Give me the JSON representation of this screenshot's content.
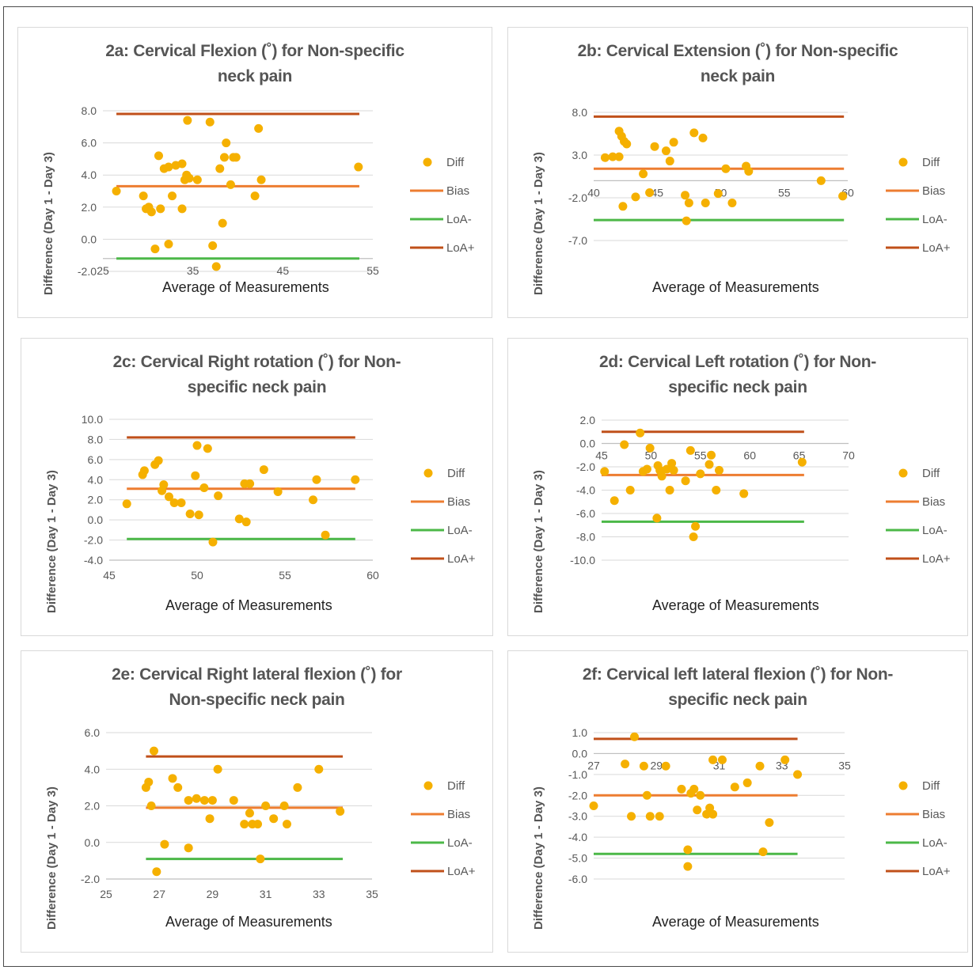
{
  "legend_labels": [
    "Diff",
    "Bias",
    "LoA-",
    "LoA+"
  ],
  "colors": {
    "diff": "#F5B000",
    "bias": "#ED7D31",
    "loa_minus": "#4CB848",
    "loa_plus": "#C0501A",
    "grid": "#D9D9D9"
  },
  "chart_data": [
    {
      "id": "2a",
      "type": "scatter",
      "title_lines": [
        "2a: Cervical Flexion (˚) for Non-specific",
        "neck pain"
      ],
      "xlabel": "Average of Measurements",
      "ylabel": "Difference (Day 1 - Day 3)",
      "xlim": [
        25,
        55
      ],
      "ylim": [
        -2,
        8
      ],
      "x_ticks": [
        25,
        35,
        45,
        55
      ],
      "x_tick_labels": [
        "25",
        "35",
        "45",
        "55"
      ],
      "y_ticks": [
        -2,
        0,
        2,
        4,
        6,
        8
      ],
      "y_tick_labels": [
        "-2.0",
        "0.0",
        "2.0",
        "4.0",
        "6.0",
        "8.0"
      ],
      "x_axis_at": -1.2,
      "bias": 3.3,
      "loa_minus": -1.2,
      "loa_plus": 7.8,
      "line_x": [
        26.5,
        53.5
      ],
      "x": [
        26.5,
        29.5,
        29.8,
        30.4,
        30.8,
        31.2,
        31.4,
        31.8,
        32.3,
        32.3,
        32.7,
        33.1,
        33.8,
        33.8,
        34.1,
        34.3,
        34.4,
        34.6,
        35.5,
        36.9,
        37.2,
        37.6,
        38.0,
        38.3,
        38.5,
        38.7,
        39.2,
        39.5,
        39.8,
        41.9,
        42.3,
        42.6,
        53.4,
        30.1
      ],
      "y": [
        3.0,
        2.7,
        1.9,
        1.7,
        -0.6,
        5.2,
        1.9,
        4.4,
        -0.3,
        4.5,
        2.7,
        4.6,
        1.9,
        4.7,
        3.7,
        4.0,
        7.4,
        3.8,
        3.7,
        7.3,
        -0.4,
        -1.7,
        4.4,
        1.0,
        5.1,
        6.0,
        3.4,
        5.1,
        5.1,
        2.7,
        6.9,
        3.7,
        4.5,
        2.0
      ]
    },
    {
      "id": "2b",
      "type": "scatter",
      "title_lines": [
        "2b: Cervical Extension (˚) for Non-specific",
        "neck pain"
      ],
      "xlabel": "Average of Measurements",
      "ylabel": "Difference (Day 1 - Day 3)",
      "xlim": [
        40,
        60
      ],
      "ylim": [
        -7,
        8
      ],
      "x_ticks": [
        40,
        45,
        50,
        55,
        60
      ],
      "x_tick_labels": [
        "40",
        "45",
        "50",
        "55",
        "60"
      ],
      "y_ticks": [
        -7,
        -2,
        3,
        8
      ],
      "y_tick_labels": [
        "-7.0",
        "-2.0",
        "3.0",
        "8.0"
      ],
      "x_axis_at": 0,
      "bias": 1.4,
      "loa_minus": -4.6,
      "loa_plus": 7.5,
      "line_x": [
        40,
        59.7
      ],
      "x": [
        40.9,
        41.5,
        42.0,
        42.0,
        42.2,
        42.4,
        42.6,
        42.3,
        43.3,
        43.9,
        44.4,
        44.8,
        45.7,
        46.0,
        46.3,
        47.2,
        47.3,
        47.5,
        47.9,
        48.6,
        48.8,
        49.8,
        50.4,
        50.9,
        52.0,
        52.2,
        57.9,
        59.6
      ],
      "y": [
        2.7,
        2.8,
        5.8,
        2.8,
        5.2,
        4.6,
        4.3,
        -3.0,
        -1.9,
        0.8,
        -1.4,
        4.0,
        3.5,
        2.3,
        4.5,
        -1.7,
        -4.7,
        -2.6,
        5.6,
        5.0,
        -2.6,
        -1.5,
        1.4,
        -2.6,
        1.7,
        1.1,
        0.0,
        -1.8
      ]
    },
    {
      "id": "2c",
      "type": "scatter",
      "title_lines": [
        "2c: Cervical Right rotation (˚) for Non-",
        "specific neck pain"
      ],
      "xlabel": "Average of Measurements",
      "ylabel": "Difference (Day 1 - Day 3)",
      "xlim": [
        45,
        60
      ],
      "ylim": [
        -4,
        10
      ],
      "x_ticks": [
        45,
        50,
        55,
        60
      ],
      "x_tick_labels": [
        "45",
        "50",
        "55",
        "60"
      ],
      "y_ticks": [
        -4,
        -2,
        0,
        2,
        4,
        6,
        8,
        10
      ],
      "y_tick_labels": [
        "-4.0",
        "-2.0",
        "0.0",
        "2.0",
        "4.0",
        "6.0",
        "8.0",
        "10.0"
      ],
      "x_axis_at": -4,
      "bias": 3.1,
      "loa_minus": -1.9,
      "loa_plus": 8.2,
      "line_x": [
        46,
        59
      ],
      "x": [
        46.0,
        46.9,
        47.0,
        47.6,
        47.8,
        48.0,
        48.1,
        48.4,
        48.7,
        49.1,
        49.6,
        49.9,
        50.0,
        50.1,
        50.4,
        50.6,
        50.9,
        51.2,
        52.4,
        52.7,
        52.8,
        53.0,
        53.8,
        54.6,
        56.6,
        56.8,
        57.3,
        59.0
      ],
      "y": [
        1.6,
        4.5,
        4.9,
        5.5,
        5.9,
        2.9,
        3.5,
        2.3,
        1.7,
        1.7,
        0.6,
        4.4,
        7.4,
        0.5,
        3.2,
        7.1,
        -2.2,
        2.4,
        0.1,
        3.6,
        -0.2,
        3.6,
        5.0,
        2.8,
        2.0,
        4.0,
        -1.5,
        4.0
      ]
    },
    {
      "id": "2d",
      "type": "scatter",
      "title_lines": [
        "2d: Cervical Left rotation (˚) for Non-",
        "specific neck pain"
      ],
      "xlabel": "Average of Measurements",
      "ylabel": "Difference (Day 1 - Day 3)",
      "xlim": [
        45,
        70
      ],
      "ylim": [
        -10,
        2
      ],
      "x_ticks": [
        45,
        50,
        55,
        60,
        65,
        70
      ],
      "x_tick_labels": [
        "45",
        "50",
        "55",
        "60",
        "65",
        "70"
      ],
      "y_ticks": [
        -10,
        -8,
        -6,
        -4,
        -2,
        0,
        2
      ],
      "y_tick_labels": [
        "-10.0",
        "-8.0",
        "-6.0",
        "-4.0",
        "-2.0",
        "0.0",
        "2.0"
      ],
      "x_axis_at": 0,
      "bias": -2.7,
      "loa_minus": -6.7,
      "loa_plus": 1.0,
      "line_x": [
        45,
        65.5
      ],
      "x": [
        45.3,
        46.3,
        47.3,
        47.9,
        48.9,
        49.2,
        49.6,
        49.9,
        50.6,
        50.7,
        50.9,
        51.1,
        51.6,
        51.9,
        52.1,
        52.3,
        53.5,
        54.0,
        54.3,
        54.5,
        55.0,
        55.9,
        56.1,
        56.6,
        56.9,
        59.4,
        65.3
      ],
      "y": [
        -2.4,
        -4.9,
        -0.1,
        -4.0,
        0.9,
        -2.4,
        -2.2,
        -0.4,
        -6.4,
        -1.9,
        -2.3,
        -2.8,
        -2.2,
        -4.0,
        -1.7,
        -2.3,
        -3.2,
        -0.6,
        -8.0,
        -7.1,
        -2.6,
        -1.8,
        -1.0,
        -4.0,
        -2.3,
        -4.3,
        -1.6
      ]
    },
    {
      "id": "2e",
      "type": "scatter",
      "title_lines": [
        "2e: Cervical Right lateral flexion (˚) for",
        "Non-specific neck pain"
      ],
      "xlabel": "Average of Measurements",
      "ylabel": "Difference (Day 1 - Day 3)",
      "xlim": [
        25,
        35
      ],
      "ylim": [
        -2,
        6
      ],
      "x_ticks": [
        25,
        27,
        29,
        31,
        33,
        35
      ],
      "x_tick_labels": [
        "25",
        "27",
        "29",
        "31",
        "33",
        "35"
      ],
      "y_ticks": [
        -2,
        0,
        2,
        4,
        6
      ],
      "y_tick_labels": [
        "-2.0",
        "0.0",
        "2.0",
        "4.0",
        "6.0"
      ],
      "x_axis_at": -2,
      "bias": 1.9,
      "loa_minus": -0.9,
      "loa_plus": 4.7,
      "line_x": [
        26.5,
        33.9
      ],
      "x": [
        26.5,
        26.6,
        26.7,
        26.8,
        26.9,
        27.2,
        27.5,
        27.7,
        28.1,
        28.1,
        28.4,
        28.7,
        28.9,
        29.0,
        29.2,
        29.8,
        30.2,
        30.4,
        30.5,
        30.7,
        30.8,
        31.0,
        31.3,
        31.7,
        31.8,
        32.2,
        33.0,
        33.8
      ],
      "y": [
        3.0,
        3.3,
        2.0,
        5.0,
        -1.6,
        -0.1,
        3.5,
        3.0,
        -0.3,
        2.3,
        2.4,
        2.3,
        1.3,
        2.3,
        4.0,
        2.3,
        1.0,
        1.6,
        1.0,
        1.0,
        -0.9,
        2.0,
        1.3,
        2.0,
        1.0,
        3.0,
        4.0,
        1.7
      ]
    },
    {
      "id": "2f",
      "type": "scatter",
      "title_lines": [
        "2f: Cervical left lateral flexion (˚) for Non-",
        "specific neck pain"
      ],
      "xlabel": "Average of Measurements",
      "ylabel": "Difference (Day 1 - Day 3)",
      "xlim": [
        27,
        35
      ],
      "ylim": [
        -6,
        1
      ],
      "x_ticks": [
        27,
        29,
        31,
        33,
        35
      ],
      "x_tick_labels": [
        "27",
        "29",
        "31",
        "33",
        "35"
      ],
      "y_ticks": [
        -6,
        -5,
        -4,
        -3,
        -2,
        -1,
        0,
        1
      ],
      "y_tick_labels": [
        "-6.0",
        "-5.0",
        "-4.0",
        "-3.0",
        "-2.0",
        "-1.0",
        "0.0",
        "1.0"
      ],
      "x_axis_at": 0,
      "bias": -2.0,
      "loa_minus": -4.8,
      "loa_plus": 0.7,
      "line_x": [
        27,
        33.5
      ],
      "x": [
        27.0,
        28.0,
        28.2,
        28.3,
        28.6,
        28.7,
        28.8,
        29.1,
        29.3,
        29.8,
        30.0,
        30.0,
        30.1,
        30.2,
        30.3,
        30.4,
        30.6,
        30.7,
        30.8,
        30.8,
        31.1,
        31.5,
        31.9,
        32.3,
        32.4,
        32.6,
        33.1,
        33.5
      ],
      "y": [
        -2.5,
        -0.5,
        -3.0,
        0.8,
        -0.6,
        -2.0,
        -3.0,
        -3.0,
        -0.6,
        -1.7,
        -4.6,
        -5.4,
        -1.9,
        -1.7,
        -2.7,
        -2.0,
        -2.9,
        -2.6,
        -0.3,
        -2.9,
        -0.3,
        -1.6,
        -1.4,
        -0.6,
        -4.7,
        -3.3,
        -0.3,
        -1.0
      ]
    }
  ]
}
